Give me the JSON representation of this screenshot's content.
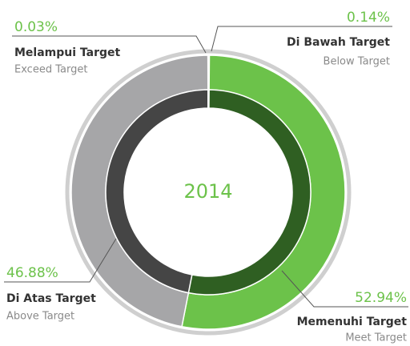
{
  "chart_data": {
    "type": "donut",
    "center_label": "2014",
    "categories": [
      "Di Bawah Target",
      "Memenuhi Target",
      "Di Atas Target",
      "Melampui Target"
    ],
    "subcategories": [
      "Below Target",
      "Meet Target",
      "Above Target",
      "Exceed Target"
    ],
    "values": [
      0.14,
      52.94,
      46.88,
      0.03
    ],
    "value_labels": [
      "0.14%",
      "52.94%",
      "46.88%",
      "0.03%"
    ],
    "colors": [
      "#e8e8e8",
      "#6cc24a",
      "#a6a6a8",
      "#555555"
    ],
    "inner_colors": [
      "#bdbdbd",
      "#2f5f22",
      "#454545",
      "#333333"
    ]
  }
}
